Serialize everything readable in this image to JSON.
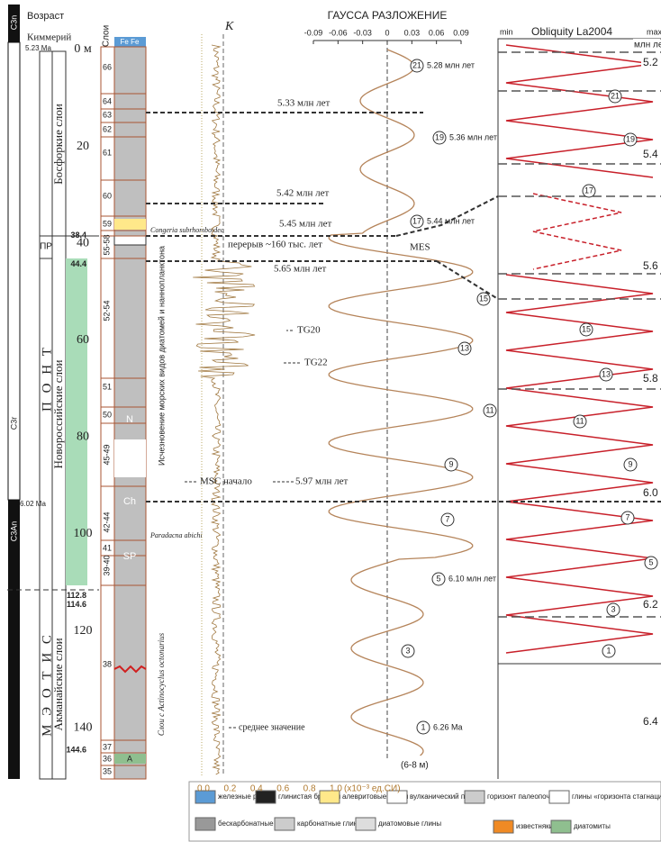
{
  "header": {
    "age": "Возраст",
    "layers": "Слои",
    "k": "K",
    "gauss": "ГАУССА РАЗЛОЖЕНИЕ",
    "obliquity": "Obliquity La2004",
    "min": "min",
    "max": "max"
  },
  "chrons": {
    "c3n": "C3n",
    "c3r": "C3r",
    "c3an": "C3An",
    "age1": "5.23 Ma",
    "age2": "6.02 Ma"
  },
  "stages": {
    "kimmer": "Киммерий",
    "pr": "ПР",
    "pont": "П О Н Т",
    "meotis": "М Э О Т И С"
  },
  "suites": {
    "bosfor": "Босфоркие слои",
    "novoros": "Новороссийские слои",
    "akmanai": "Акманайские слои"
  },
  "depth": {
    "ticks": [
      {
        "value": 0,
        "label": "0 м"
      },
      20,
      40,
      60,
      80,
      100,
      120,
      140
    ],
    "special": [
      38.4,
      44.4,
      112.8,
      114.6,
      144.6
    ]
  },
  "layers": [
    "66",
    "64",
    "63",
    "62",
    "61",
    "60",
    "59",
    "55-58",
    "52-54",
    "51",
    "50",
    "45-49",
    "42-44",
    "41",
    "39-40",
    "38",
    "37",
    "36",
    "35"
  ],
  "symbols": [
    "N",
    "Ch",
    "SP",
    "A",
    "Fe Fe"
  ],
  "annotations": {
    "a533": "5.33 млн лет",
    "a542": "5.42 млн лет",
    "a545": "5.45 млн лет",
    "gap": "перерыв ~160 тыс. лет",
    "a565": "5.65 млн лет",
    "mes": "MES",
    "tg20": "TG20",
    "tg22": "TG22",
    "msc": "MSC начало",
    "a597": "5.97 млн лет",
    "mean": "среднее значение",
    "congeria": "Congeria subrhomboidea",
    "paradacna": "Paradacna abichi",
    "actino": "Слои с Actinocyclus octonarius",
    "disappear": "Исчезновение морских видов диатомей и наннопланктона"
  },
  "k_axis": {
    "ticks": [
      {
        "value": 0,
        "label": "0.0"
      },
      0.2,
      0.4,
      0.6,
      0.8,
      {
        "value": 1,
        "label": "1.0"
      }
    ],
    "unit": "(х10⁻³ ед.СИ)"
  },
  "gauss_axis": {
    "ticks": [
      -0.09,
      -0.06,
      -0.03,
      0,
      0.03,
      0.06,
      0.09
    ],
    "depth_note": "(6-8 м)"
  },
  "gauss_cycles": [
    {
      "n": "21",
      "age": "5.28 млн лет"
    },
    {
      "n": "19",
      "age": "5.36 млн лет"
    },
    {
      "n": "17",
      "age": "5.44 млн лет"
    },
    {
      "n": "15"
    },
    {
      "n": "13"
    },
    {
      "n": "11"
    },
    {
      "n": "9"
    },
    {
      "n": "7"
    },
    {
      "n": "5",
      "age": "6.10 млн лет"
    },
    {
      "n": "3"
    },
    {
      "n": "1",
      "age": "6.26 Ma"
    }
  ],
  "obliquity_cycles": [
    "21",
    "19",
    "17",
    "15",
    "13",
    "11",
    "9",
    "7",
    "5",
    "3",
    "1"
  ],
  "obliquity_ages": [
    "млн лет",
    "5.2",
    "5.4",
    "5.6",
    "5.8",
    "6.0",
    "6.2",
    "6.4"
  ],
  "legend": [
    "железные руды",
    "глинистая брекчия",
    "алевритовые глины",
    "вулканический пепел",
    "горизонт палеопочв",
    "глины «горизонта стагнации»",
    "бескарбонатные глины",
    "карбонатные глины",
    "диатомовые глины",
    "известняки",
    "диатомиты"
  ]
}
